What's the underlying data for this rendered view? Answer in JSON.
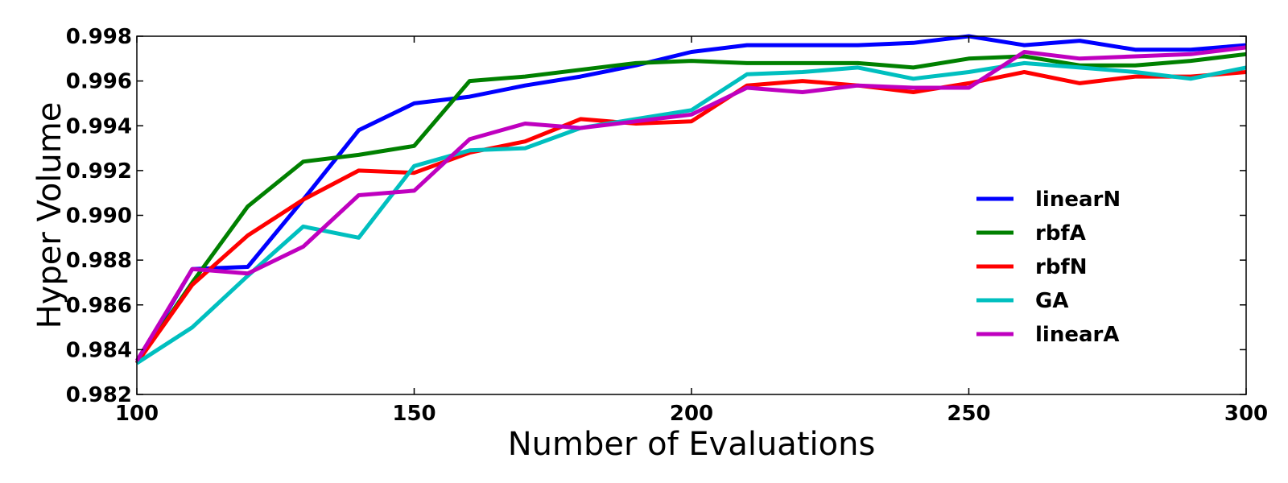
{
  "chart_data": {
    "type": "line",
    "xlabel": "Number of Evaluations",
    "ylabel": "Hyper Volume",
    "xlim": [
      100,
      300
    ],
    "ylim": [
      0.982,
      0.998
    ],
    "xticks": [
      100,
      150,
      200,
      250,
      300
    ],
    "xtick_labels": [
      "100",
      "150",
      "200",
      "250",
      "300"
    ],
    "yticks": [
      0.982,
      0.984,
      0.986,
      0.988,
      0.99,
      0.992,
      0.994,
      0.996,
      0.998
    ],
    "ytick_labels": [
      "0.982",
      "0.984",
      "0.986",
      "0.988",
      "0.990",
      "0.992",
      "0.994",
      "0.996",
      "0.998"
    ],
    "grid": false,
    "legend_position": "right",
    "x": [
      100,
      110,
      120,
      130,
      140,
      150,
      160,
      170,
      180,
      190,
      200,
      210,
      220,
      230,
      240,
      250,
      260,
      270,
      280,
      290,
      300
    ],
    "series": [
      {
        "name": "linearN",
        "color": "#0000ff",
        "values": [
          0.9834,
          0.9876,
          0.9877,
          0.9907,
          0.9938,
          0.995,
          0.9953,
          0.9958,
          0.9962,
          0.9967,
          0.9973,
          0.9976,
          0.9976,
          0.9976,
          0.9977,
          0.998,
          0.9976,
          0.9978,
          0.9974,
          0.9974,
          0.9976
        ]
      },
      {
        "name": "rbfA",
        "color": "#008000",
        "values": [
          0.9834,
          0.987,
          0.9904,
          0.9924,
          0.9927,
          0.9931,
          0.996,
          0.9962,
          0.9965,
          0.9968,
          0.9969,
          0.9968,
          0.9968,
          0.9968,
          0.9966,
          0.997,
          0.9971,
          0.9967,
          0.9967,
          0.9969,
          0.9972
        ]
      },
      {
        "name": "rbfN",
        "color": "#ff0000",
        "values": [
          0.9834,
          0.9869,
          0.9891,
          0.9907,
          0.992,
          0.9919,
          0.9928,
          0.9933,
          0.9943,
          0.9941,
          0.9942,
          0.9958,
          0.996,
          0.9958,
          0.9955,
          0.9959,
          0.9964,
          0.9959,
          0.9962,
          0.9962,
          0.9964
        ]
      },
      {
        "name": "GA",
        "color": "#00bfbf",
        "values": [
          0.9834,
          0.985,
          0.9873,
          0.9895,
          0.989,
          0.9922,
          0.9929,
          0.993,
          0.9939,
          0.9943,
          0.9947,
          0.9963,
          0.9964,
          0.9966,
          0.9961,
          0.9964,
          0.9968,
          0.9966,
          0.9964,
          0.9961,
          0.9966
        ]
      },
      {
        "name": "linearA",
        "color": "#bf00bf",
        "values": [
          0.9835,
          0.9876,
          0.9874,
          0.9886,
          0.9909,
          0.9911,
          0.9934,
          0.9941,
          0.9939,
          0.9942,
          0.9945,
          0.9957,
          0.9955,
          0.9958,
          0.9957,
          0.9957,
          0.9973,
          0.997,
          0.9971,
          0.9972,
          0.9975
        ]
      }
    ]
  }
}
